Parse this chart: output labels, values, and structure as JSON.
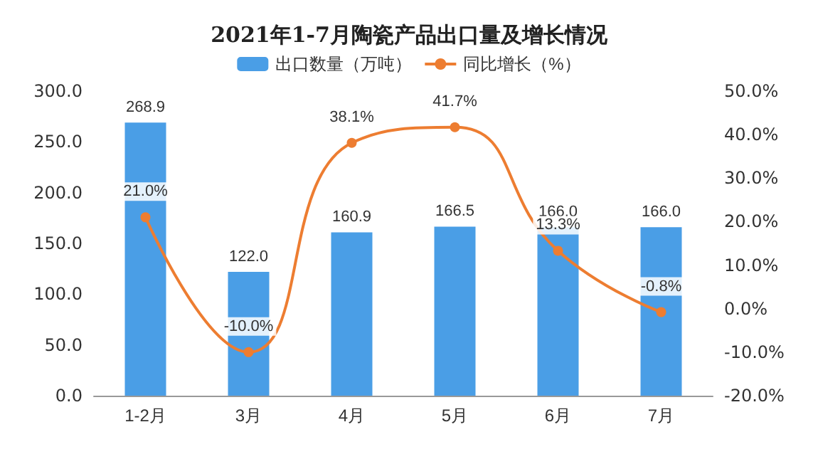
{
  "chart_data": {
    "type": "bar",
    "title": "2021年1-7月陶瓷产品出口量及增长情况",
    "categories": [
      "1-2月",
      "3月",
      "4月",
      "5月",
      "6月",
      "7月"
    ],
    "series": [
      {
        "name": "出口数量（万吨）",
        "color": "#4a9ee6",
        "values": [
          268.9,
          122.0,
          160.9,
          166.5,
          166.0,
          166.0
        ],
        "value_labels": [
          "268.9",
          "122.0",
          "160.9",
          "166.5",
          "166.0",
          "166.0"
        ]
      },
      {
        "name": "同比增长（%）",
        "type": "line",
        "axis": "y2",
        "color": "#ed7d31",
        "marker": "circle",
        "values": [
          21.0,
          -10.0,
          38.1,
          41.7,
          13.3,
          -0.8
        ],
        "value_labels": [
          "21.0%",
          "-10.0%",
          "38.1%",
          "41.7%",
          "13.3%",
          "-0.8%"
        ]
      }
    ],
    "ylim": [
      0,
      300
    ],
    "yticks": [
      {
        "value": 0,
        "label": "0.0"
      },
      {
        "value": 50,
        "label": "50.0"
      },
      {
        "value": 100,
        "label": "100.0"
      },
      {
        "value": 150,
        "label": "150.0"
      },
      {
        "value": 200,
        "label": "200.0"
      },
      {
        "value": 250,
        "label": "250.0"
      },
      {
        "value": 300,
        "label": "300.0"
      }
    ],
    "y2lim": [
      -20,
      50
    ],
    "y2ticks": [
      {
        "value": -20,
        "label": "-20.0%"
      },
      {
        "value": -10,
        "label": "-10.0%"
      },
      {
        "value": 0,
        "label": "0.0%"
      },
      {
        "value": 10,
        "label": "10.0%"
      },
      {
        "value": 20,
        "label": "20.0%"
      },
      {
        "value": 30,
        "label": "30.0%"
      },
      {
        "value": 40,
        "label": "40.0%"
      },
      {
        "value": 50,
        "label": "50.0%"
      }
    ],
    "legend": "top"
  }
}
